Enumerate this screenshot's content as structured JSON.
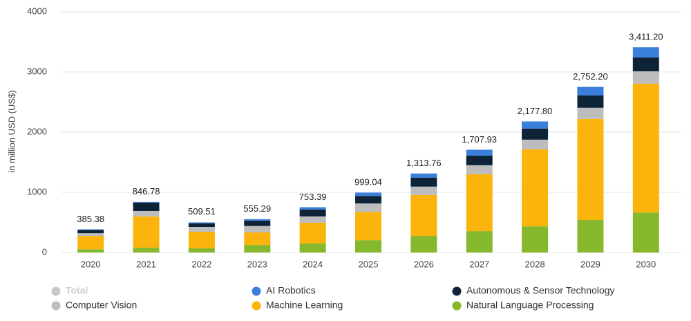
{
  "chart_data": {
    "type": "stacked_bar",
    "y_axis_title": "in million USD (US$)",
    "categories": [
      "2020",
      "2021",
      "2022",
      "2023",
      "2024",
      "2025",
      "2026",
      "2027",
      "2028",
      "2029",
      "2030"
    ],
    "ylim": [
      0,
      4000
    ],
    "yticks": [
      0,
      1000,
      2000,
      3000,
      4000
    ],
    "grid": true,
    "series": [
      {
        "name": "Total",
        "color": "#c8c8c8",
        "visible": false,
        "values": [
          385.38,
          846.78,
          509.51,
          555.29,
          753.39,
          999.04,
          1313.76,
          1707.93,
          2177.8,
          2752.2,
          3411.2
        ],
        "value_labels": [
          "385.38",
          "846.78",
          "509.51",
          "555.29",
          "753.39",
          "999.04",
          "1,313.76",
          "1,707.93",
          "2,177.80",
          "2,752.20",
          "3,411.20"
        ]
      },
      {
        "name": "AI Robotics",
        "color": "#3a7fdc",
        "values": [
          10,
          10,
          15,
          25,
          38,
          55,
          68,
          98,
          118,
          142,
          171
        ]
      },
      {
        "name": "Autonomous & Sensor Technology",
        "color": "#0e2338",
        "values": [
          55,
          140,
          60,
          90,
          115,
          125,
          150,
          160,
          185,
          205,
          230
        ]
      },
      {
        "name": "Computer Vision",
        "color": "#bdbdbd",
        "values": [
          45,
          90,
          80,
          105,
          105,
          140,
          140,
          150,
          160,
          185,
          205
        ]
      },
      {
        "name": "Machine Learning",
        "color": "#fbb40b",
        "values": [
          220,
          520,
          275,
          210,
          345,
          470,
          680,
          945,
          1280,
          1680,
          2140
        ]
      },
      {
        "name": "Natural Language Processing",
        "color": "#85b82d",
        "values": [
          55,
          80,
          70,
          125,
          150,
          205,
          275,
          355,
          435,
          540,
          665
        ]
      }
    ]
  }
}
